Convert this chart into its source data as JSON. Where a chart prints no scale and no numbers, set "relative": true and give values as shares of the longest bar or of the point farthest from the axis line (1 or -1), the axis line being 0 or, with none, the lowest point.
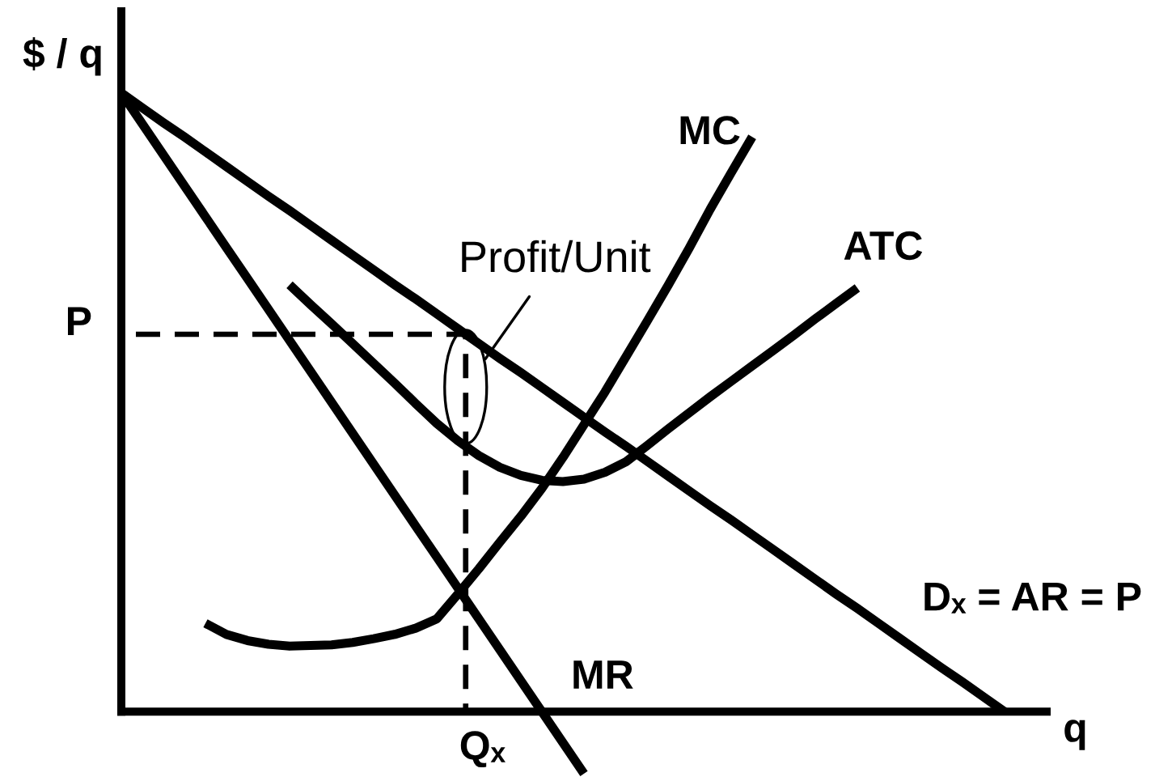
{
  "chart_data": {
    "type": "line",
    "relative": true,
    "xlabel": "q",
    "ylabel": "$ / q",
    "categories": [
      null,
      null,
      null,
      null,
      null,
      null,
      null,
      null,
      null,
      null,
      null,
      null,
      null,
      null,
      null,
      null,
      null,
      null,
      null,
      null,
      null,
      null,
      null,
      null,
      null,
      null,
      null,
      null,
      null,
      null,
      null,
      null,
      null,
      null,
      null,
      null,
      null,
      null,
      null,
      null,
      null,
      null,
      null,
      null,
      null
    ],
    "series": [
      {
        "name": "Dₓ = AR = P",
        "color": "#000000",
        "values": [
          1,
          0.976,
          0.952,
          0.929,
          0.905,
          0.881,
          0.857,
          0.833,
          0.81,
          0.786,
          0.762,
          0.738,
          0.714,
          0.69,
          0.667,
          0.643,
          0.619,
          0.595,
          0.571,
          0.548,
          0.524,
          0.5,
          0.476,
          0.452,
          0.429,
          0.405,
          0.381,
          0.357,
          0.333,
          0.31,
          0.286,
          0.262,
          0.238,
          0.214,
          0.19,
          0.167,
          0.143,
          0.119,
          0.095,
          0.071,
          0.048,
          0.024,
          0,
          null,
          null
        ]
      },
      {
        "name": "MR",
        "color": "#000000",
        "values": [
          1,
          0.95,
          0.9,
          0.85,
          0.8,
          0.75,
          0.7,
          0.65,
          0.6,
          0.55,
          0.5,
          0.45,
          0.4,
          0.35,
          0.3,
          0.25,
          0.2,
          0.15,
          0.1,
          0.05,
          0,
          -0.05,
          -0.1,
          null,
          null,
          null,
          null,
          null,
          null,
          null,
          null,
          null,
          null,
          null,
          null,
          null,
          null,
          null,
          null,
          null,
          null,
          null,
          null,
          null,
          null
        ]
      },
      {
        "name": "MC",
        "color": "#000000",
        "values": [
          null,
          null,
          null,
          null,
          0.143,
          0.125,
          0.115,
          0.109,
          0.106,
          0.107,
          0.108,
          0.112,
          0.118,
          0.125,
          0.135,
          0.15,
          0.19,
          0.231,
          0.274,
          0.316,
          0.361,
          0.411,
          0.464,
          0.517,
          0.574,
          0.631,
          0.689,
          0.749,
          0.812,
          0.871,
          0.929,
          null,
          null,
          null,
          null,
          null,
          null,
          null,
          null,
          null,
          null,
          null,
          null,
          null,
          null
        ]
      },
      {
        "name": "ATC",
        "color": "#000000",
        "values": [
          null,
          null,
          null,
          null,
          null,
          null,
          null,
          null,
          0.69,
          0.658,
          0.627,
          0.595,
          0.563,
          0.531,
          0.498,
          0.466,
          0.438,
          0.414,
          0.395,
          0.382,
          0.374,
          0.372,
          0.376,
          0.387,
          0.404,
          0.43,
          0.457,
          0.483,
          0.509,
          0.534,
          0.559,
          0.584,
          0.609,
          0.635,
          0.66,
          0.685,
          null,
          null,
          null,
          null,
          null,
          null,
          null,
          null,
          null
        ]
      }
    ],
    "ref_lines": [
      {
        "axis": "y",
        "value": 0.61,
        "label": "P",
        "color": "#000000",
        "line_style": "dashed"
      }
    ],
    "annotations": [
      "Qₓ",
      {
        "text": "Profit/Unit",
        "y": 0.525
      }
    ]
  }
}
